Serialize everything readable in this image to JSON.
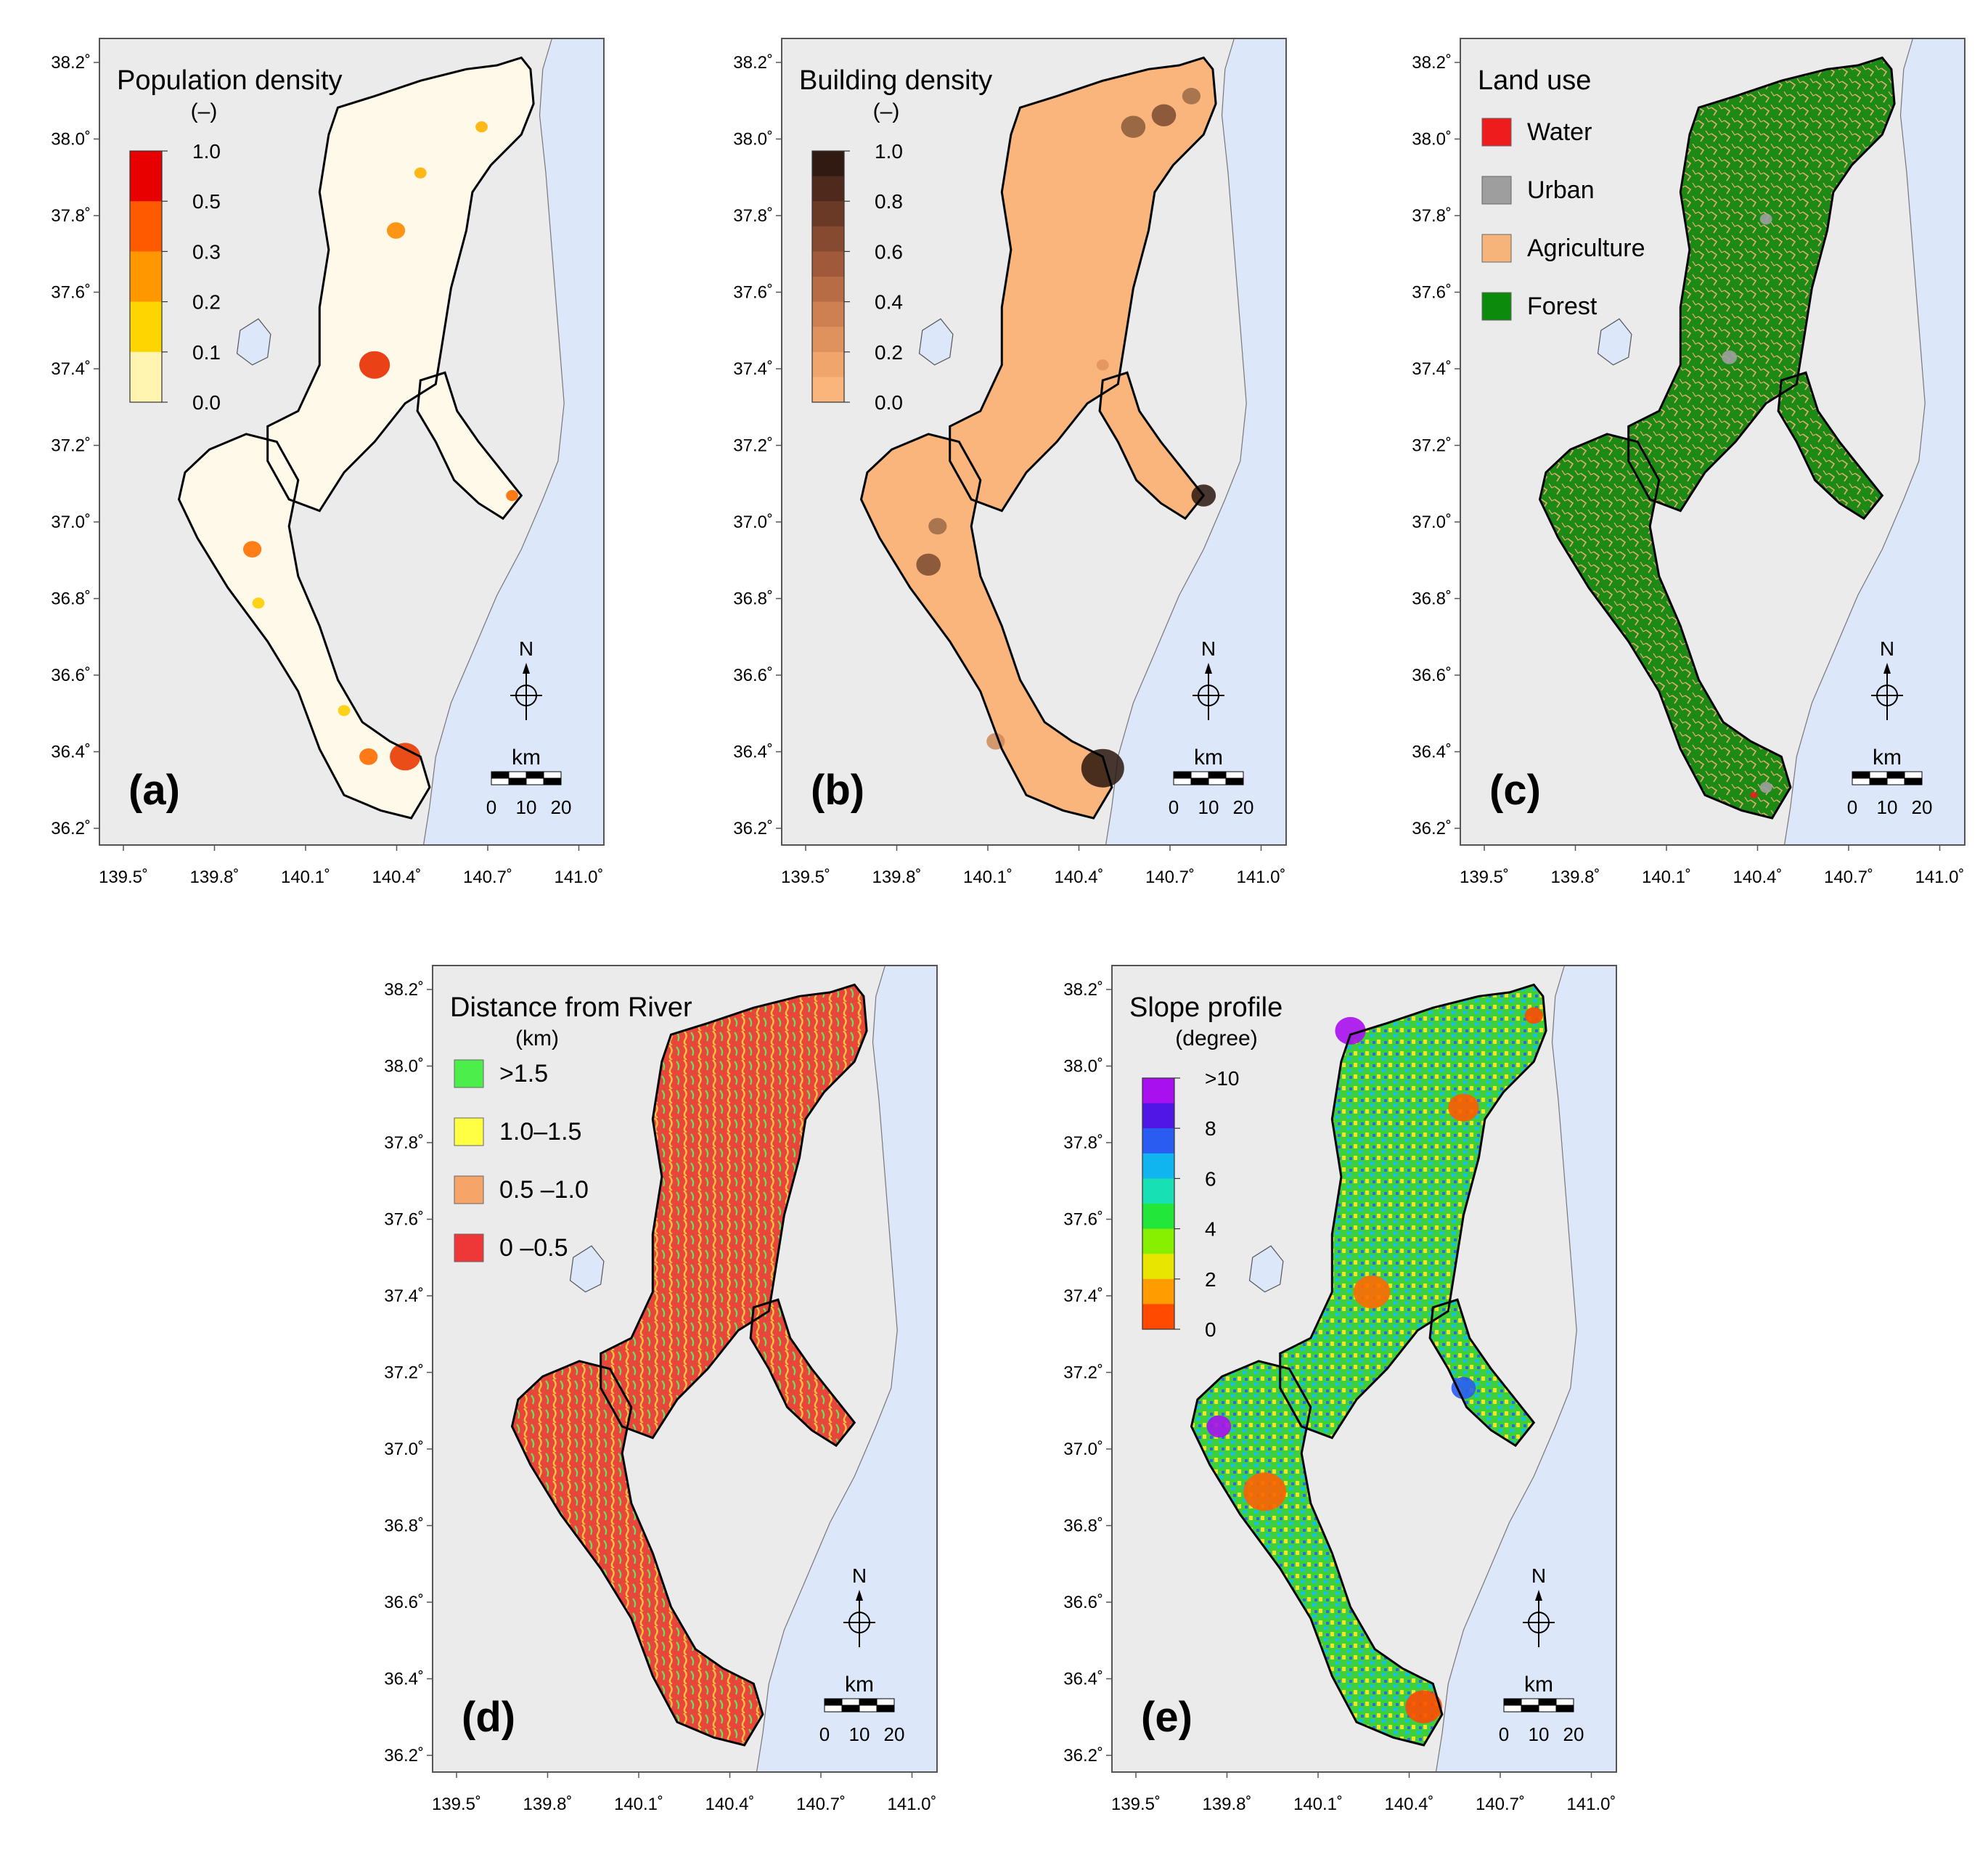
{
  "figure": {
    "x_ticks": [
      "139.5˚",
      "139.8˚",
      "140.1˚",
      "140.4˚",
      "140.7˚",
      "141.0˚"
    ],
    "y_ticks": [
      "38.2˚",
      "38.0˚",
      "37.8˚",
      "37.6˚",
      "37.4˚",
      "37.2˚",
      "37.0˚",
      "36.8˚",
      "36.6˚",
      "36.4˚",
      "36.2˚"
    ],
    "north_label": "N",
    "scale": {
      "unit": "km",
      "ticks": [
        "0",
        "10",
        "20"
      ]
    },
    "colors": {
      "background": "#ebebeb",
      "sea": "#dce8fa",
      "lake": "#dce8fa",
      "boundary": "#000000"
    }
  },
  "panels": [
    {
      "id": "a",
      "label": "(a)",
      "legend_title": "Population density",
      "legend_unit": "(–)",
      "legend_type": "ramp",
      "legend_colors": [
        "#fff5b0",
        "#ffd500",
        "#ff9800",
        "#ff5a00",
        "#e80000"
      ],
      "legend_labels": [
        "1.0",
        "0.5",
        "0.3",
        "0.2",
        "0.1",
        "0.0"
      ],
      "fill": "#fff8e8"
    },
    {
      "id": "b",
      "label": "(b)",
      "legend_title": "Building density",
      "legend_unit": "(–)",
      "legend_type": "ramp",
      "legend_colors": [
        "#f9b57c",
        "#f0a56c",
        "#e0925e",
        "#cf8052",
        "#b86c45",
        "#a05a3b",
        "#864a30",
        "#6a3a26",
        "#4f2a1c",
        "#301a12"
      ],
      "legend_labels": [
        "1.0",
        "0.8",
        "0.6",
        "0.4",
        "0.2",
        "0.0"
      ],
      "fill": "#f9b57c"
    },
    {
      "id": "c",
      "label": "(c)",
      "legend_title": "Land use",
      "legend_unit": "",
      "legend_type": "boxes",
      "legend_items": [
        {
          "label": "Water",
          "color": "#ee1c1c"
        },
        {
          "label": "Urban",
          "color": "#9e9e9e"
        },
        {
          "label": "Agriculture",
          "color": "#f6b47a"
        },
        {
          "label": "Forest",
          "color": "#0c8a0c"
        }
      ],
      "fill": "#1d8a16"
    },
    {
      "id": "d",
      "label": "(d)",
      "legend_title": "Distance from River",
      "legend_unit": "(km)",
      "legend_type": "boxes",
      "legend_items": [
        {
          "label": ">1.5",
          "color": "#4cee4c"
        },
        {
          "label": "1.0–1.5",
          "color": "#ffff44"
        },
        {
          "label": "0.5 –1.0",
          "color": "#f6a468"
        },
        {
          "label": "0 –0.5",
          "color": "#ee3838"
        }
      ],
      "fill": "#e8553c"
    },
    {
      "id": "e",
      "label": "(e)",
      "legend_title": "Slope profile",
      "legend_unit": "(degree)",
      "legend_type": "ramp",
      "legend_colors": [
        "#ff4a00",
        "#ff9c00",
        "#e8e600",
        "#86f000",
        "#22e63a",
        "#16e0b4",
        "#10b4ee",
        "#2a5cf2",
        "#5016e6",
        "#a810f0"
      ],
      "legend_labels": [
        ">10",
        "8",
        "6",
        "4",
        "2",
        "0"
      ],
      "fill": "#52cc3a"
    }
  ]
}
